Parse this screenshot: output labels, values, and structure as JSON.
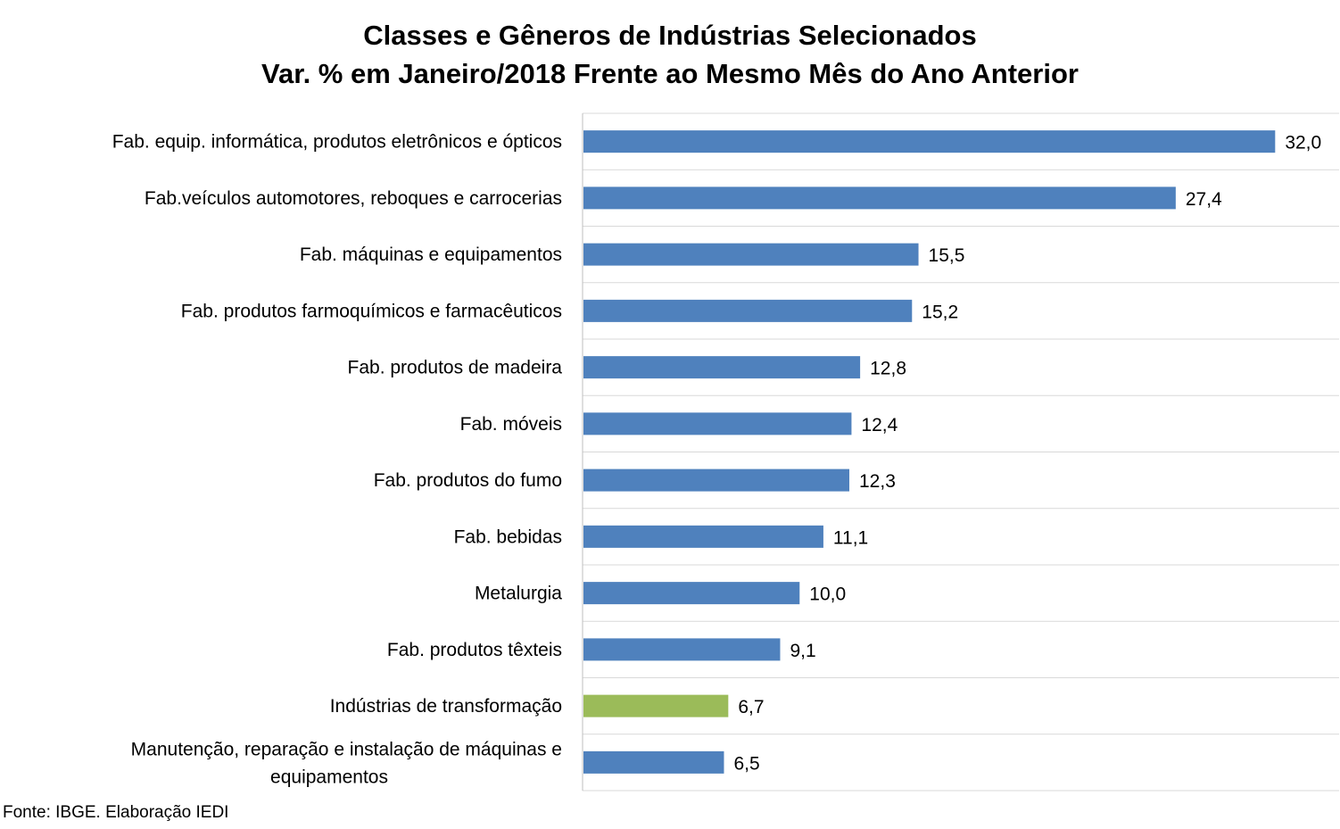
{
  "chart_data": {
    "type": "bar",
    "orientation": "horizontal",
    "title": "Classes e Gêneros de Indústrias Selecionados",
    "subtitle": "Var. % em Janeiro/2018 Frente ao Mesmo Mês do Ano Anterior",
    "categories": [
      "Fab. equip. informática, produtos eletrônicos e ópticos",
      "Fab.veículos automotores, reboques e carrocerias",
      "Fab. máquinas e equipamentos",
      "Fab. produtos farmoquímicos e farmacêuticos",
      "Fab. produtos de madeira",
      "Fab. móveis",
      "Fab. produtos do fumo",
      "Fab. bebidas",
      "Metalurgia",
      "Fab. produtos têxteis",
      "Indústrias de transformação",
      "Manutenção, reparação e instalação de máquinas e equipamentos"
    ],
    "values": [
      32.0,
      27.4,
      15.5,
      15.2,
      12.8,
      12.4,
      12.3,
      11.1,
      10.0,
      9.1,
      6.7,
      6.5
    ],
    "value_labels": [
      "32,0",
      "27,4",
      "15,5",
      "15,2",
      "12,8",
      "12,4",
      "12,3",
      "11,1",
      "10,0",
      "9,1",
      "6,7",
      "6,5"
    ],
    "colors": [
      "#4F81BD",
      "#4F81BD",
      "#4F81BD",
      "#4F81BD",
      "#4F81BD",
      "#4F81BD",
      "#4F81BD",
      "#4F81BD",
      "#4F81BD",
      "#4F81BD",
      "#9BBB59",
      "#4F81BD"
    ],
    "xlim": [
      0,
      35
    ],
    "grid": true,
    "axis_color": "#BFBFBF",
    "source": "Fonte: IBGE. Elaboração IEDI"
  }
}
